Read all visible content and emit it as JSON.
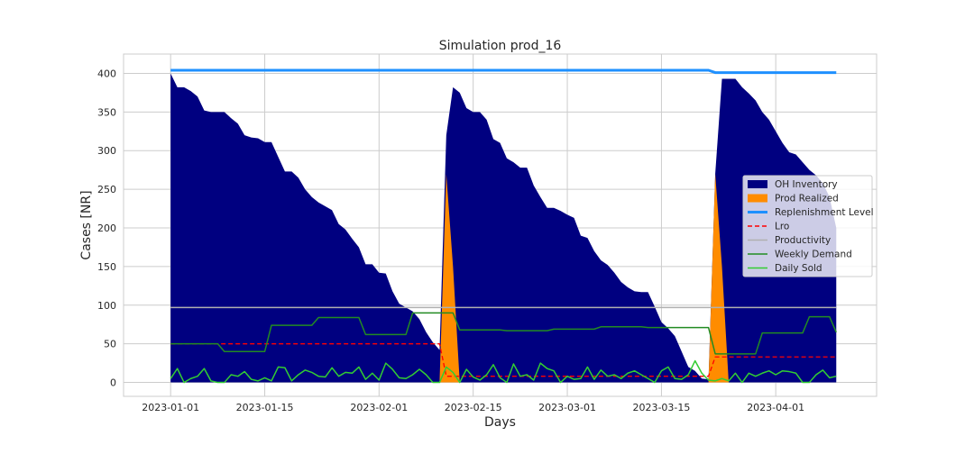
{
  "chart_data": {
    "type": "area",
    "title": "Simulation prod_16",
    "xlabel": "Days",
    "ylabel": "Cases [NR]",
    "x_start": "2023-01-01",
    "x_end": "2023-04-09",
    "xlim": [
      "2022-12-25",
      "2023-04-16"
    ],
    "ylim": [
      -18,
      425
    ],
    "xticks": [
      "2023-01-01",
      "2023-01-15",
      "2023-02-01",
      "2023-02-15",
      "2023-03-01",
      "2023-03-15",
      "2023-04-01"
    ],
    "yticks": [
      0,
      50,
      100,
      150,
      200,
      250,
      300,
      350,
      400
    ],
    "grid": true,
    "legend_position": "center-right",
    "series": [
      {
        "name": "OH Inventory",
        "kind": "area",
        "color": "#000080",
        "values": [
          400,
          382,
          382,
          377,
          370,
          352,
          350,
          350,
          350,
          342,
          335,
          320,
          317,
          316,
          311,
          311,
          292,
          273,
          273,
          265,
          250,
          240,
          233,
          228,
          223,
          205,
          198,
          186,
          175,
          153,
          153,
          142,
          141,
          118,
          102,
          97,
          92,
          82,
          65,
          52,
          42,
          320,
          382,
          375,
          355,
          350,
          350,
          340,
          315,
          310,
          290,
          285,
          278,
          278,
          255,
          240,
          226,
          226,
          222,
          217,
          213,
          190,
          187,
          170,
          158,
          152,
          142,
          130,
          123,
          118,
          117,
          117,
          98,
          78,
          70,
          60,
          40,
          20,
          15,
          5,
          4,
          270,
          393,
          393,
          393,
          382,
          374,
          365,
          350,
          340,
          325,
          310,
          298,
          295,
          285,
          275,
          268,
          258,
          240,
          200
        ]
      },
      {
        "name": "Prod Realized",
        "kind": "area",
        "color": "#ff8c00",
        "values": [
          0,
          0,
          0,
          0,
          0,
          0,
          0,
          0,
          0,
          0,
          0,
          0,
          0,
          0,
          0,
          0,
          0,
          0,
          0,
          0,
          0,
          0,
          0,
          0,
          0,
          0,
          0,
          0,
          0,
          0,
          0,
          0,
          0,
          0,
          0,
          0,
          0,
          0,
          0,
          0,
          0,
          270,
          150,
          0,
          0,
          0,
          0,
          0,
          0,
          0,
          0,
          0,
          0,
          0,
          0,
          0,
          0,
          0,
          0,
          0,
          0,
          0,
          0,
          0,
          0,
          0,
          0,
          0,
          0,
          0,
          0,
          0,
          0,
          0,
          0,
          0,
          0,
          0,
          0,
          0,
          0,
          270,
          150,
          0,
          0,
          0,
          0,
          0,
          0,
          0,
          0,
          0,
          0,
          0,
          0,
          0,
          0,
          0,
          0,
          0
        ]
      },
      {
        "name": "Replenishment Level",
        "kind": "line",
        "color": "#1e90ff",
        "values": [
          404,
          404,
          404,
          404,
          404,
          404,
          404,
          404,
          404,
          404,
          404,
          404,
          404,
          404,
          404,
          404,
          404,
          404,
          404,
          404,
          404,
          404,
          404,
          404,
          404,
          404,
          404,
          404,
          404,
          404,
          404,
          404,
          404,
          404,
          404,
          404,
          404,
          404,
          404,
          404,
          404,
          404,
          404,
          404,
          404,
          404,
          404,
          404,
          404,
          404,
          404,
          404,
          404,
          404,
          404,
          404,
          404,
          404,
          404,
          404,
          404,
          404,
          404,
          404,
          404,
          404,
          404,
          404,
          404,
          404,
          404,
          404,
          404,
          404,
          404,
          404,
          404,
          404,
          404,
          404,
          404,
          401,
          401,
          401,
          401,
          401,
          401,
          401,
          401,
          401,
          401,
          401,
          401,
          401,
          401,
          401,
          401,
          401,
          401,
          401
        ]
      },
      {
        "name": "Lro",
        "kind": "dashed",
        "color": "#ff0000",
        "values": [
          50,
          50,
          50,
          50,
          50,
          50,
          50,
          50,
          50,
          50,
          50,
          50,
          50,
          50,
          50,
          50,
          50,
          50,
          50,
          50,
          50,
          50,
          50,
          50,
          50,
          50,
          50,
          50,
          50,
          50,
          50,
          50,
          50,
          50,
          50,
          50,
          50,
          50,
          50,
          50,
          50,
          8,
          8,
          8,
          8,
          8,
          8,
          8,
          8,
          8,
          8,
          8,
          8,
          8,
          8,
          8,
          8,
          8,
          8,
          8,
          8,
          8,
          8,
          8,
          8,
          8,
          8,
          8,
          8,
          8,
          8,
          8,
          8,
          8,
          8,
          8,
          8,
          8,
          8,
          8,
          8,
          33,
          33,
          33,
          33,
          33,
          33,
          33,
          33,
          33,
          33,
          33,
          33,
          33,
          33,
          33,
          33,
          33,
          33,
          33
        ]
      },
      {
        "name": "Productivity",
        "kind": "line",
        "color": "#b0b0b0",
        "values": [
          97,
          97,
          97,
          97,
          97,
          97,
          97,
          97,
          97,
          97,
          97,
          97,
          97,
          97,
          97,
          97,
          97,
          97,
          97,
          97,
          97,
          97,
          97,
          97,
          97,
          97,
          97,
          97,
          97,
          97,
          97,
          97,
          97,
          97,
          97,
          97,
          97,
          97,
          97,
          97,
          97,
          97,
          97,
          97,
          97,
          97,
          97,
          97,
          97,
          97,
          97,
          97,
          97,
          97,
          97,
          97,
          97,
          97,
          97,
          97,
          97,
          97,
          97,
          97,
          97,
          97,
          97,
          97,
          97,
          97,
          97,
          97,
          97,
          97,
          97,
          97,
          97,
          97,
          97,
          97,
          97,
          97,
          97,
          97,
          97,
          97,
          97,
          97,
          97,
          97,
          97,
          97,
          97,
          97,
          97,
          97,
          97,
          97,
          97,
          97
        ]
      },
      {
        "name": "Weekly Demand",
        "kind": "line",
        "color": "#228b22",
        "values": [
          50,
          50,
          50,
          50,
          50,
          50,
          50,
          50,
          40,
          40,
          40,
          40,
          40,
          40,
          40,
          74,
          74,
          74,
          74,
          74,
          74,
          74,
          84,
          84,
          84,
          84,
          84,
          84,
          84,
          62,
          62,
          62,
          62,
          62,
          62,
          62,
          90,
          90,
          90,
          90,
          90,
          90,
          90,
          68,
          68,
          68,
          68,
          68,
          68,
          68,
          67,
          67,
          67,
          67,
          67,
          67,
          67,
          69,
          69,
          69,
          69,
          69,
          69,
          69,
          72,
          72,
          72,
          72,
          72,
          72,
          72,
          71,
          71,
          71,
          71,
          71,
          71,
          71,
          71,
          71,
          71,
          37,
          37,
          37,
          37,
          37,
          37,
          37,
          64,
          64,
          64,
          64,
          64,
          64,
          64,
          85,
          85,
          85,
          85,
          65
        ]
      },
      {
        "name": "Daily Sold",
        "kind": "line",
        "color": "#32cd32",
        "values": [
          5,
          18,
          0,
          5,
          8,
          18,
          2,
          0,
          0,
          10,
          8,
          14,
          4,
          2,
          6,
          2,
          20,
          19,
          2,
          10,
          16,
          13,
          8,
          7,
          19,
          8,
          13,
          12,
          20,
          4,
          12,
          3,
          25,
          17,
          6,
          5,
          10,
          17,
          10,
          0,
          0,
          20,
          13,
          0,
          17,
          7,
          3,
          10,
          23,
          6,
          0,
          24,
          8,
          10,
          3,
          25,
          18,
          15,
          0,
          8,
          4,
          5,
          20,
          4,
          16,
          8,
          10,
          5,
          12,
          15,
          10,
          5,
          0,
          15,
          20,
          5,
          4,
          10,
          28,
          12,
          3,
          2,
          5,
          2,
          12,
          0,
          12,
          8,
          12,
          15,
          10,
          15,
          14,
          12,
          0,
          0,
          10,
          16,
          6,
          8
        ]
      }
    ]
  }
}
